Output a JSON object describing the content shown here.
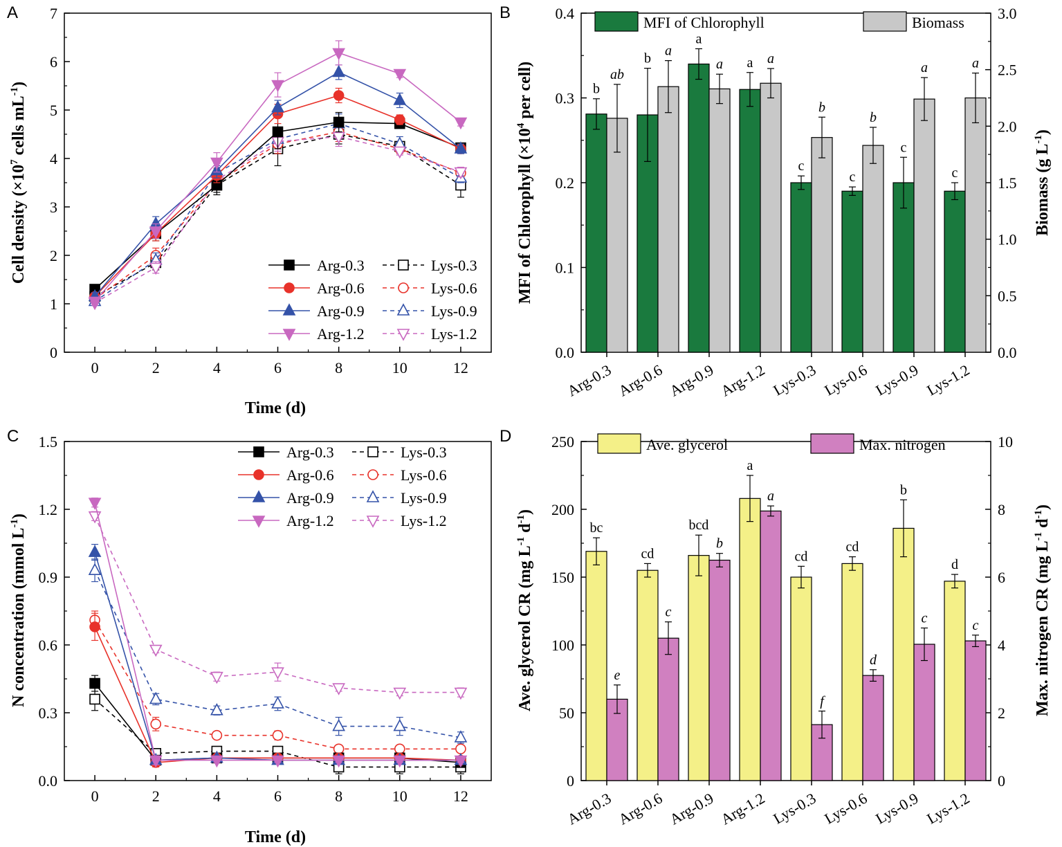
{
  "panel_labels": [
    "A",
    "B",
    "C",
    "D"
  ],
  "colors": {
    "arg03": "#000000",
    "arg06": "#e8322a",
    "arg09": "#3452a8",
    "arg12": "#c868c0",
    "bar_green": "#1a7a3e",
    "bar_gray": "#c8c8c8",
    "bar_yellow": "#f4f088",
    "bar_pink": "#d080c0"
  },
  "chart_data": [
    {
      "type": "line",
      "panel": "A",
      "xlabel": "Time (d)",
      "ylabel_main": "Cell density (×10",
      "ylabel_sup1": "7",
      "ylabel_mid": " cells mL",
      "ylabel_sup2": "-1",
      "ylabel_end": ")",
      "xlim": [
        -1,
        13
      ],
      "ylim": [
        0,
        7
      ],
      "xticks": [
        "0",
        "2",
        "4",
        "6",
        "8",
        "10",
        "12"
      ],
      "yticks": [
        "0",
        "1",
        "2",
        "3",
        "4",
        "5",
        "6",
        "7"
      ],
      "x": [
        0,
        2,
        4,
        6,
        8,
        10,
        12
      ],
      "legend_position": "bottom-right",
      "series": [
        {
          "name": "Arg-0.3",
          "marker": "square",
          "filled": true,
          "dashed": false,
          "color": "#000000",
          "values": [
            1.3,
            2.45,
            3.45,
            4.55,
            4.75,
            4.72,
            4.22
          ],
          "err": [
            0.05,
            0.15,
            0.15,
            0.35,
            0.2,
            0.08,
            0.1
          ]
        },
        {
          "name": "Arg-0.6",
          "marker": "circle",
          "filled": true,
          "dashed": false,
          "color": "#e8322a",
          "values": [
            1.15,
            2.45,
            3.65,
            4.92,
            5.3,
            4.8,
            4.2
          ],
          "err": [
            0.08,
            0.15,
            0.15,
            0.2,
            0.15,
            0.1,
            0.1
          ]
        },
        {
          "name": "Arg-0.9",
          "marker": "triangle-up",
          "filled": true,
          "dashed": false,
          "color": "#3452a8",
          "values": [
            1.15,
            2.65,
            3.75,
            5.05,
            5.78,
            5.2,
            4.2
          ],
          "err": [
            0.08,
            0.15,
            0.15,
            0.15,
            0.15,
            0.15,
            0.1
          ]
        },
        {
          "name": "Arg-1.2",
          "marker": "triangle-down",
          "filled": true,
          "dashed": false,
          "color": "#c868c0",
          "values": [
            1.05,
            2.5,
            3.92,
            5.52,
            6.18,
            5.75,
            4.75
          ],
          "err": [
            0.05,
            0.15,
            0.2,
            0.25,
            0.25,
            0.08,
            0.08
          ]
        },
        {
          "name": "Lys-0.3",
          "marker": "square",
          "filled": false,
          "dashed": true,
          "color": "#000000",
          "values": [
            1.15,
            1.85,
            3.45,
            4.2,
            4.5,
            4.25,
            3.45
          ],
          "err": [
            0.05,
            0.15,
            0.2,
            0.35,
            0.2,
            0.1,
            0.25
          ]
        },
        {
          "name": "Lys-0.6",
          "marker": "circle",
          "filled": false,
          "dashed": true,
          "color": "#e8322a",
          "values": [
            1.1,
            2.0,
            3.5,
            4.3,
            4.55,
            4.2,
            3.7
          ],
          "err": [
            0.05,
            0.15,
            0.15,
            0.2,
            0.2,
            0.1,
            0.1
          ]
        },
        {
          "name": "Lys-0.9",
          "marker": "triangle-up",
          "filled": false,
          "dashed": true,
          "color": "#3452a8",
          "values": [
            1.05,
            1.9,
            3.7,
            4.4,
            4.72,
            4.3,
            3.6
          ],
          "err": [
            0.05,
            0.15,
            0.15,
            0.2,
            0.2,
            0.15,
            0.1
          ]
        },
        {
          "name": "Lys-1.2",
          "marker": "triangle-down",
          "filled": false,
          "dashed": true,
          "color": "#c868c0",
          "values": [
            1.02,
            1.75,
            3.55,
            4.35,
            4.45,
            4.15,
            3.72
          ],
          "err": [
            0.05,
            0.12,
            0.15,
            0.2,
            0.2,
            0.08,
            0.1
          ]
        }
      ]
    },
    {
      "type": "bar",
      "panel": "B",
      "categories": [
        "Arg-0.3",
        "Arg-0.6",
        "Arg-0.9",
        "Arg-1.2",
        "Lys-0.3",
        "Lys-0.6",
        "Lys-0.9",
        "Lys-1.2"
      ],
      "ylabel_left_main": "MFI of Chlorophyll (×10",
      "ylabel_left_sup": "4",
      "ylabel_left_end": " per cell)",
      "ylabel_right_main": "Biomass (g L",
      "ylabel_right_sup": "-1",
      "ylabel_right_end": ")",
      "ylim_left": [
        0,
        0.4
      ],
      "ylim_right": [
        0,
        3.0
      ],
      "yticks_left": [
        "0.0",
        "0.1",
        "0.2",
        "0.3",
        "0.4"
      ],
      "yticks_right": [
        "0.0",
        "0.5",
        "1.0",
        "1.5",
        "2.0",
        "2.5",
        "3.0"
      ],
      "legend_position": "top",
      "series": [
        {
          "name": "MFI of Chlorophyll",
          "axis": "left",
          "color": "#1a7a3e",
          "italic_labels": false,
          "values": [
            0.281,
            0.28,
            0.34,
            0.31,
            0.2,
            0.19,
            0.2,
            0.19
          ],
          "err": [
            0.018,
            0.055,
            0.018,
            0.02,
            0.008,
            0.005,
            0.03,
            0.01
          ],
          "labels": [
            "b",
            "b",
            "a",
            "a",
            "c",
            "c",
            "c",
            "c"
          ]
        },
        {
          "name": "Biomass",
          "axis": "right",
          "color": "#c8c8c8",
          "italic_labels": true,
          "values": [
            2.07,
            2.35,
            2.33,
            2.38,
            1.9,
            1.83,
            2.24,
            2.25
          ],
          "err": [
            0.3,
            0.23,
            0.13,
            0.13,
            0.18,
            0.16,
            0.19,
            0.22
          ],
          "labels": [
            "ab",
            "a",
            "a",
            "a",
            "b",
            "b",
            "a",
            "a"
          ]
        }
      ]
    },
    {
      "type": "line",
      "panel": "C",
      "xlabel": "Time (d)",
      "ylabel_main": "N concentration (mmol L",
      "ylabel_sup": "-1",
      "ylabel_end": ")",
      "xlim": [
        -1,
        13
      ],
      "ylim": [
        0,
        1.5
      ],
      "xticks": [
        "0",
        "2",
        "4",
        "6",
        "8",
        "10",
        "12"
      ],
      "yticks": [
        "0.0",
        "0.3",
        "0.6",
        "0.9",
        "1.2",
        "1.5"
      ],
      "x": [
        0,
        2,
        4,
        6,
        8,
        10,
        12
      ],
      "legend_position": "top-right",
      "series": [
        {
          "name": "Arg-0.3",
          "marker": "square",
          "filled": true,
          "dashed": false,
          "color": "#000000",
          "values": [
            0.43,
            0.09,
            0.1,
            0.1,
            0.1,
            0.1,
            0.08
          ],
          "err": [
            0.035,
            0.02,
            0.01,
            0.01,
            0.01,
            0.01,
            0.01
          ]
        },
        {
          "name": "Arg-0.6",
          "marker": "circle",
          "filled": true,
          "dashed": false,
          "color": "#e8322a",
          "values": [
            0.68,
            0.08,
            0.1,
            0.1,
            0.1,
            0.1,
            0.09
          ],
          "err": [
            0.06,
            0.02,
            0.01,
            0.01,
            0.01,
            0.01,
            0.01
          ]
        },
        {
          "name": "Arg-0.9",
          "marker": "triangle-up",
          "filled": true,
          "dashed": false,
          "color": "#3452a8",
          "values": [
            1.01,
            0.09,
            0.1,
            0.09,
            0.09,
            0.09,
            0.09
          ],
          "err": [
            0.035,
            0.02,
            0.01,
            0.01,
            0.01,
            0.01,
            0.01
          ]
        },
        {
          "name": "Arg-1.2",
          "marker": "triangle-down",
          "filled": true,
          "dashed": false,
          "color": "#c868c0",
          "values": [
            1.23,
            0.09,
            0.09,
            0.09,
            0.09,
            0.09,
            0.09
          ],
          "err": [
            0.02,
            0.02,
            0.01,
            0.01,
            0.01,
            0.01,
            0.01
          ]
        },
        {
          "name": "Lys-0.3",
          "marker": "square",
          "filled": false,
          "dashed": true,
          "color": "#000000",
          "values": [
            0.36,
            0.12,
            0.13,
            0.13,
            0.06,
            0.06,
            0.06
          ],
          "err": [
            0.05,
            0.01,
            0.01,
            0.01,
            0.03,
            0.03,
            0.03
          ]
        },
        {
          "name": "Lys-0.6",
          "marker": "circle",
          "filled": false,
          "dashed": true,
          "color": "#e8322a",
          "values": [
            0.71,
            0.25,
            0.2,
            0.2,
            0.14,
            0.14,
            0.14
          ],
          "err": [
            0.04,
            0.03,
            0.015,
            0.02,
            0.01,
            0.01,
            0.01
          ]
        },
        {
          "name": "Lys-0.9",
          "marker": "triangle-up",
          "filled": false,
          "dashed": true,
          "color": "#3452a8",
          "values": [
            0.93,
            0.36,
            0.31,
            0.34,
            0.24,
            0.24,
            0.19
          ],
          "err": [
            0.05,
            0.025,
            0.02,
            0.03,
            0.04,
            0.04,
            0.025
          ]
        },
        {
          "name": "Lys-1.2",
          "marker": "triangle-down",
          "filled": false,
          "dashed": true,
          "color": "#c868c0",
          "values": [
            1.17,
            0.58,
            0.46,
            0.48,
            0.41,
            0.39,
            0.39
          ],
          "err": [
            0.02,
            0.015,
            0.02,
            0.04,
            0.015,
            0.015,
            0.02
          ]
        }
      ]
    },
    {
      "type": "bar",
      "panel": "D",
      "categories": [
        "Arg-0.3",
        "Arg-0.6",
        "Arg-0.9",
        "Arg-1.2",
        "Lys-0.3",
        "Lys-0.6",
        "Lys-0.9",
        "Lys-1.2"
      ],
      "ylabel_left_main": "Ave. glycerol CR (mg L",
      "ylabel_left_sup1": "-1",
      "ylabel_left_mid": " d",
      "ylabel_left_sup2": "-1",
      "ylabel_left_end": ")",
      "ylabel_right_main": "Max. nitrogen CR (mg L",
      "ylabel_right_sup1": "-1",
      "ylabel_right_mid": " d",
      "ylabel_right_sup2": "-1",
      "ylabel_right_end": ")",
      "ylim_left": [
        0,
        250
      ],
      "ylim_right": [
        0,
        10
      ],
      "yticks_left": [
        "0",
        "50",
        "100",
        "150",
        "200",
        "250"
      ],
      "yticks_right": [
        "0",
        "2",
        "4",
        "6",
        "8",
        "10"
      ],
      "legend_position": "top",
      "series": [
        {
          "name": "Ave. glycerol",
          "axis": "left",
          "color": "#f4f088",
          "italic_labels": false,
          "values": [
            169,
            155,
            166,
            208,
            150,
            160,
            186,
            147
          ],
          "err": [
            10,
            5,
            15,
            17,
            8,
            5,
            21,
            5
          ],
          "labels": [
            "bc",
            "cd",
            "bcd",
            "a",
            "cd",
            "cd",
            "b",
            "d"
          ]
        },
        {
          "name": "Max. nitrogen",
          "axis": "right",
          "color": "#d080c0",
          "italic_labels": true,
          "values": [
            2.4,
            4.2,
            6.5,
            7.95,
            1.65,
            3.1,
            4.02,
            4.12
          ],
          "err": [
            0.42,
            0.48,
            0.2,
            0.15,
            0.4,
            0.17,
            0.48,
            0.17
          ],
          "labels": [
            "e",
            "c",
            "b",
            "a",
            "f",
            "d",
            "c",
            "c"
          ]
        }
      ]
    }
  ]
}
